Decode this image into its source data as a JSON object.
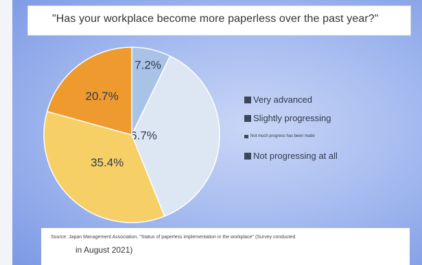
{
  "chart_data": {
    "type": "pie",
    "title": "\"Has your workplace become more paperless over the past year?\"",
    "categories": [
      "Very advanced",
      "Slightly progressing",
      "Not much progress has been made",
      "Not progressing at all"
    ],
    "slices": [
      {
        "label": "Very advanced",
        "value": 7.2,
        "display": "7.2%",
        "color": "#a9c3e6"
      },
      {
        "label": "Slightly progressing",
        "value": 36.7,
        "display": "36.7%",
        "color": "#dde7f4"
      },
      {
        "label": "Not much progress has been made",
        "value": 35.4,
        "display": "35.4%",
        "color": "#f7cf67"
      },
      {
        "label": "Not progressing at all",
        "value": 20.7,
        "display": "20.7%",
        "color": "#ee9a2f"
      }
    ],
    "legend_placement": "right",
    "slice_order": "clockwise from 12 o'clock"
  },
  "source_line1": "Source: Japan Management Association, \"Status of paperless implementation in the workplace\" (Survey conducted",
  "source_line2": "in August 2021)",
  "colors": {
    "background": "#a8bdf0",
    "legend_marker": "#3c4759",
    "slice_edge": "#ffffff"
  }
}
